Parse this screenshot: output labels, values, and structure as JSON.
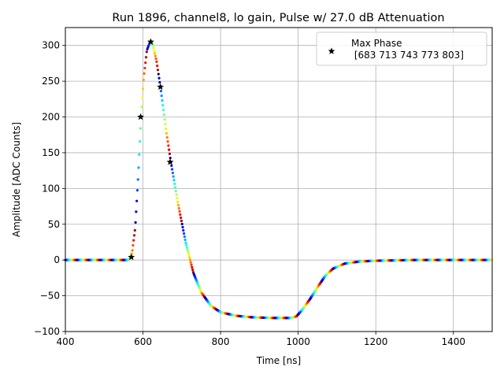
{
  "chart_data": {
    "type": "scatter",
    "title": "Run 1896, channel8, lo gain, Pulse w/ 27.0 dB Attenuation",
    "xlabel": "Time [ns]",
    "ylabel": "Amplitude [ADC Counts]",
    "xlim": [
      400,
      1500
    ],
    "ylim": [
      -100,
      325
    ],
    "xticks": [
      400,
      600,
      800,
      1000,
      1200,
      1400
    ],
    "yticks": [
      -100,
      -50,
      0,
      50,
      100,
      150,
      200,
      250,
      300
    ],
    "grid": true,
    "legend": {
      "position": "top-right",
      "marker": "star",
      "label": "Max Phase",
      "sublabel": "[683 713 743 773 803]"
    },
    "colormap": "jet",
    "curve": [
      [
        400,
        0
      ],
      [
        560,
        0
      ],
      [
        566,
        2
      ],
      [
        572,
        10
      ],
      [
        580,
        45
      ],
      [
        588,
        120
      ],
      [
        595,
        200
      ],
      [
        602,
        255
      ],
      [
        610,
        293
      ],
      [
        618,
        305
      ],
      [
        625,
        302
      ],
      [
        635,
        278
      ],
      [
        645,
        242
      ],
      [
        660,
        180
      ],
      [
        672,
        137
      ],
      [
        690,
        80
      ],
      [
        710,
        25
      ],
      [
        730,
        -18
      ],
      [
        750,
        -45
      ],
      [
        775,
        -64
      ],
      [
        800,
        -73
      ],
      [
        840,
        -78
      ],
      [
        880,
        -80
      ],
      [
        930,
        -81
      ],
      [
        980,
        -81
      ],
      [
        995,
        -79
      ],
      [
        1010,
        -70
      ],
      [
        1030,
        -55
      ],
      [
        1050,
        -38
      ],
      [
        1070,
        -22
      ],
      [
        1090,
        -12
      ],
      [
        1120,
        -5
      ],
      [
        1160,
        -2
      ],
      [
        1200,
        -1
      ],
      [
        1300,
        0
      ],
      [
        1500,
        0
      ]
    ],
    "markers": [
      {
        "x": 570,
        "y": 4
      },
      {
        "x": 594,
        "y": 200
      },
      {
        "x": 620,
        "y": 305
      },
      {
        "x": 645,
        "y": 242
      },
      {
        "x": 670,
        "y": 137
      }
    ]
  }
}
